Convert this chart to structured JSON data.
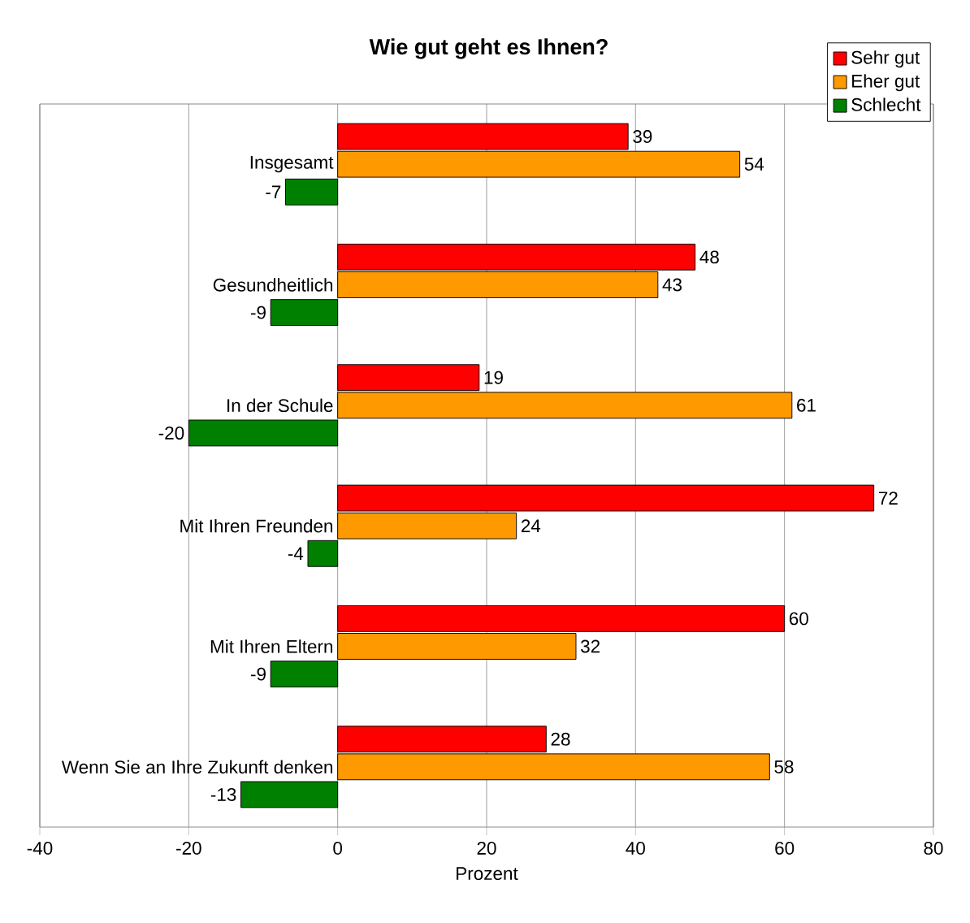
{
  "chart_data": {
    "type": "bar",
    "orientation": "horizontal",
    "title": "Wie gut geht es Ihnen?",
    "xlabel": "Prozent",
    "categories": [
      "Insgesamt",
      "Gesundheitlich",
      "In der Schule",
      "Mit Ihren Freunden",
      "Mit Ihren Eltern",
      "Wenn Sie an Ihre Zukunft denken"
    ],
    "series": [
      {
        "name": "Sehr gut",
        "color": "#ff0000",
        "values": [
          39,
          48,
          19,
          72,
          60,
          28
        ]
      },
      {
        "name": "Eher gut",
        "color": "#ff9900",
        "values": [
          54,
          43,
          61,
          24,
          32,
          58
        ]
      },
      {
        "name": "Schlecht",
        "color": "#008000",
        "values": [
          -7,
          -9,
          -20,
          -4,
          -9,
          -13
        ]
      }
    ],
    "xlim": [
      -40,
      80
    ],
    "xticks": [
      -40,
      -20,
      0,
      20,
      40,
      60,
      80
    ],
    "grid": "x",
    "legend": "top right",
    "data_labels": true
  }
}
